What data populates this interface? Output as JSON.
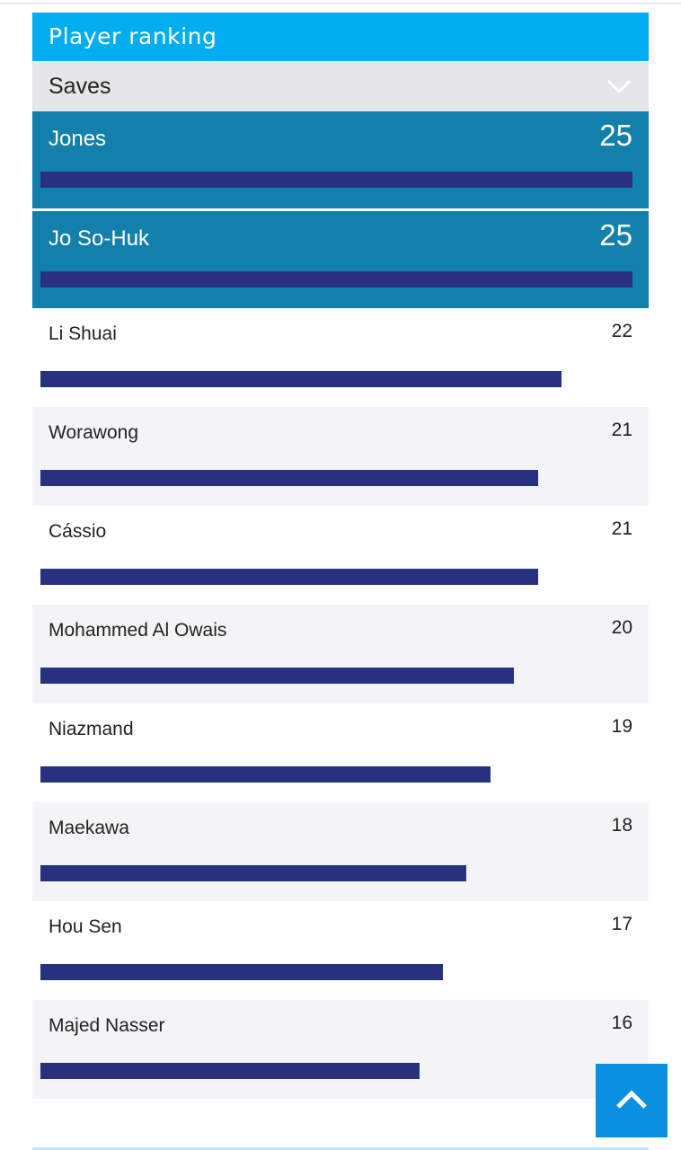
{
  "widget": {
    "title": "Player ranking",
    "selector": {
      "selected": "Saves",
      "icon": "chevron-down-icon"
    }
  },
  "rankings": [
    {
      "name": "Jones",
      "value": 25
    },
    {
      "name": "Jo So-Huk",
      "value": 25
    },
    {
      "name": "Li Shuai",
      "value": 22
    },
    {
      "name": "Worawong",
      "value": 21
    },
    {
      "name": "Cássio",
      "value": 21
    },
    {
      "name": "Mohammed Al Owais",
      "value": 20
    },
    {
      "name": "Niazmand",
      "value": 19
    },
    {
      "name": "Maekawa",
      "value": 18
    },
    {
      "name": "Hou Sen",
      "value": 17
    },
    {
      "name": "Majed Nasser",
      "value": 16
    }
  ],
  "scroll_top": {
    "icon": "chevron-up-icon"
  },
  "colors": {
    "header": "#00aeef",
    "leader_row": "#1380ab",
    "bar": "#27317e",
    "scroll_button": "#0a90e0"
  }
}
